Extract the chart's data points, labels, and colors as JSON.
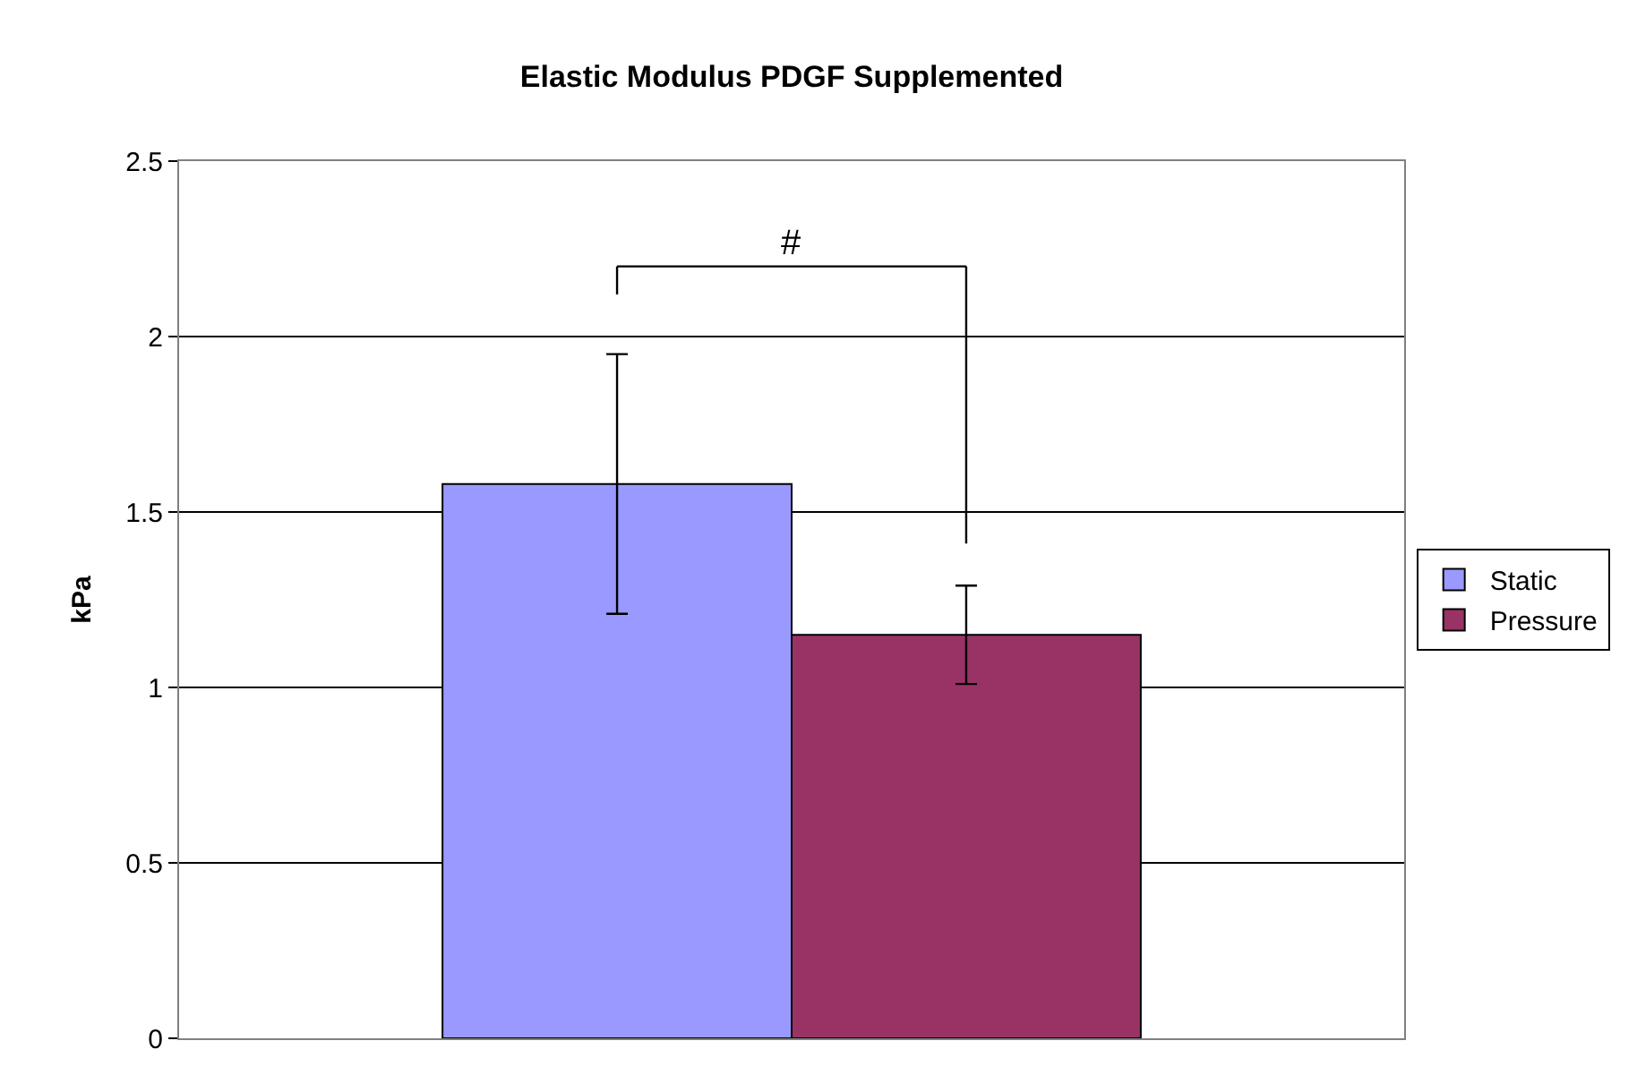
{
  "chart_data": {
    "type": "bar",
    "title": "Elastic Modulus PDGF Supplemented",
    "ylabel": "kPa",
    "categories": [
      null
    ],
    "series": [
      {
        "name": "Static",
        "color": "#9999ff",
        "values": [
          1.58
        ],
        "errors": [
          0.37
        ]
      },
      {
        "name": "Pressure",
        "color": "#993366",
        "values": [
          1.15
        ],
        "errors": [
          0.14
        ]
      }
    ],
    "ylim": [
      0,
      2.5
    ],
    "yticks": [
      0,
      0.5,
      1,
      1.5,
      2,
      2.5
    ],
    "grid": "y",
    "legend": "right",
    "annotations": [
      "#"
    ]
  }
}
